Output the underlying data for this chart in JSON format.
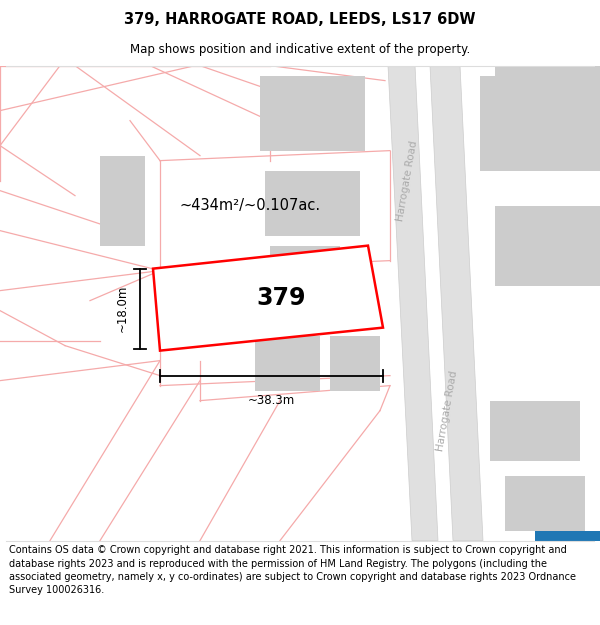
{
  "title_line1": "379, HARROGATE ROAD, LEEDS, LS17 6DW",
  "title_line2": "Map shows position and indicative extent of the property.",
  "footer_text": "Contains OS data © Crown copyright and database right 2021. This information is subject to Crown copyright and database rights 2023 and is reproduced with the permission of HM Land Registry. The polygons (including the associated geometry, namely x, y co-ordinates) are subject to Crown copyright and database rights 2023 Ordnance Survey 100026316.",
  "area_label": "~434m²/~0.107ac.",
  "property_number": "379",
  "width_label": "~38.3m",
  "height_label": "~18.0m",
  "road_label": "Harrogate Road",
  "map_bg": "#ffffff",
  "plot_color": "#ff0000",
  "building_fill": "#cccccc",
  "cadastral_color": "#f5aaaa",
  "road_fill": "#e0e0e0",
  "road_edge": "#cccccc"
}
